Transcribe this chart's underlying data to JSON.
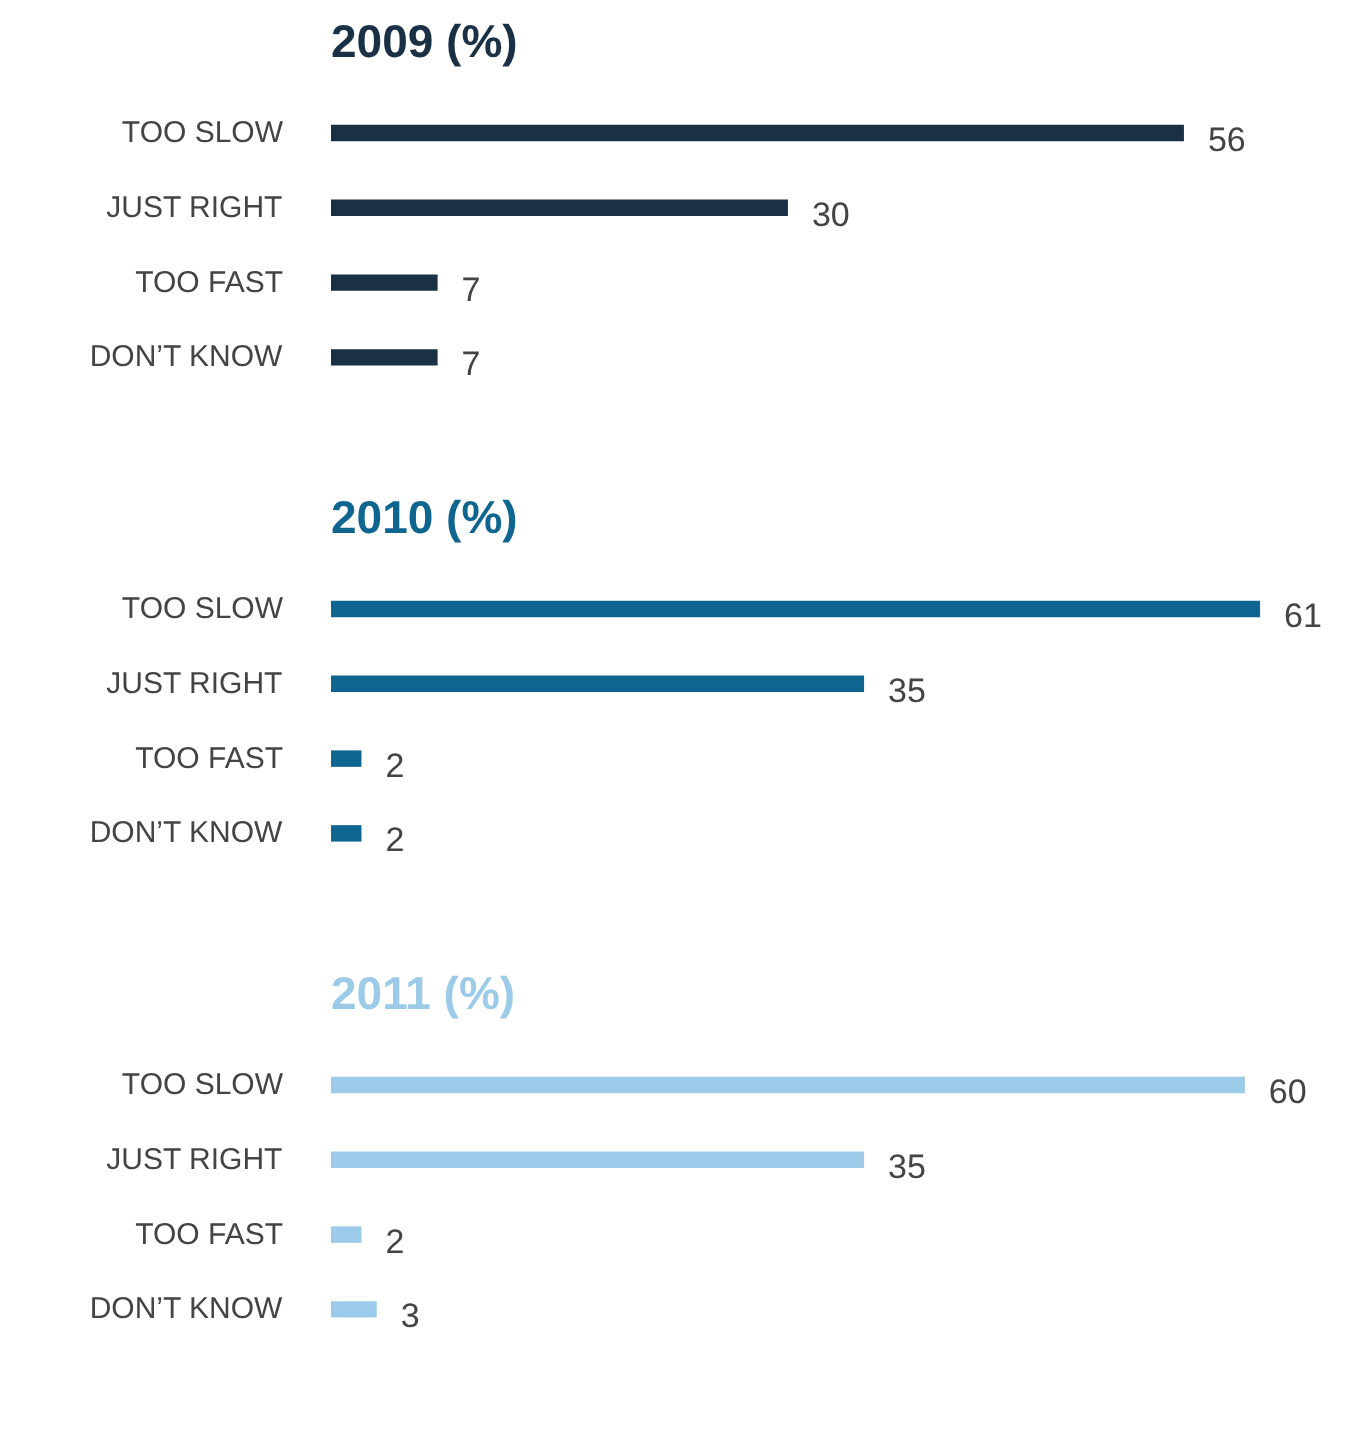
{
  "chart_data": [
    {
      "type": "bar",
      "orientation": "horizontal",
      "title": "2009 (%)",
      "categories": [
        "TOO SLOW",
        "JUST RIGHT",
        "TOO FAST",
        "DON’T KNOW"
      ],
      "values": [
        56,
        30,
        7,
        7
      ],
      "color": "#1a3045",
      "data_labels": true
    },
    {
      "type": "bar",
      "orientation": "horizontal",
      "title": "2010 (%)",
      "categories": [
        "TOO SLOW",
        "JUST RIGHT",
        "TOO FAST",
        "DON’T KNOW"
      ],
      "values": [
        61,
        35,
        2,
        2
      ],
      "color": "#0e6690",
      "data_labels": true
    },
    {
      "type": "bar",
      "orientation": "horizontal",
      "title": "2011 (%)",
      "categories": [
        "TOO SLOW",
        "JUST RIGHT",
        "TOO FAST",
        "DON’T KNOW"
      ],
      "values": [
        60,
        35,
        2,
        3
      ],
      "color": "#9ccbe9",
      "data_labels": true
    }
  ]
}
